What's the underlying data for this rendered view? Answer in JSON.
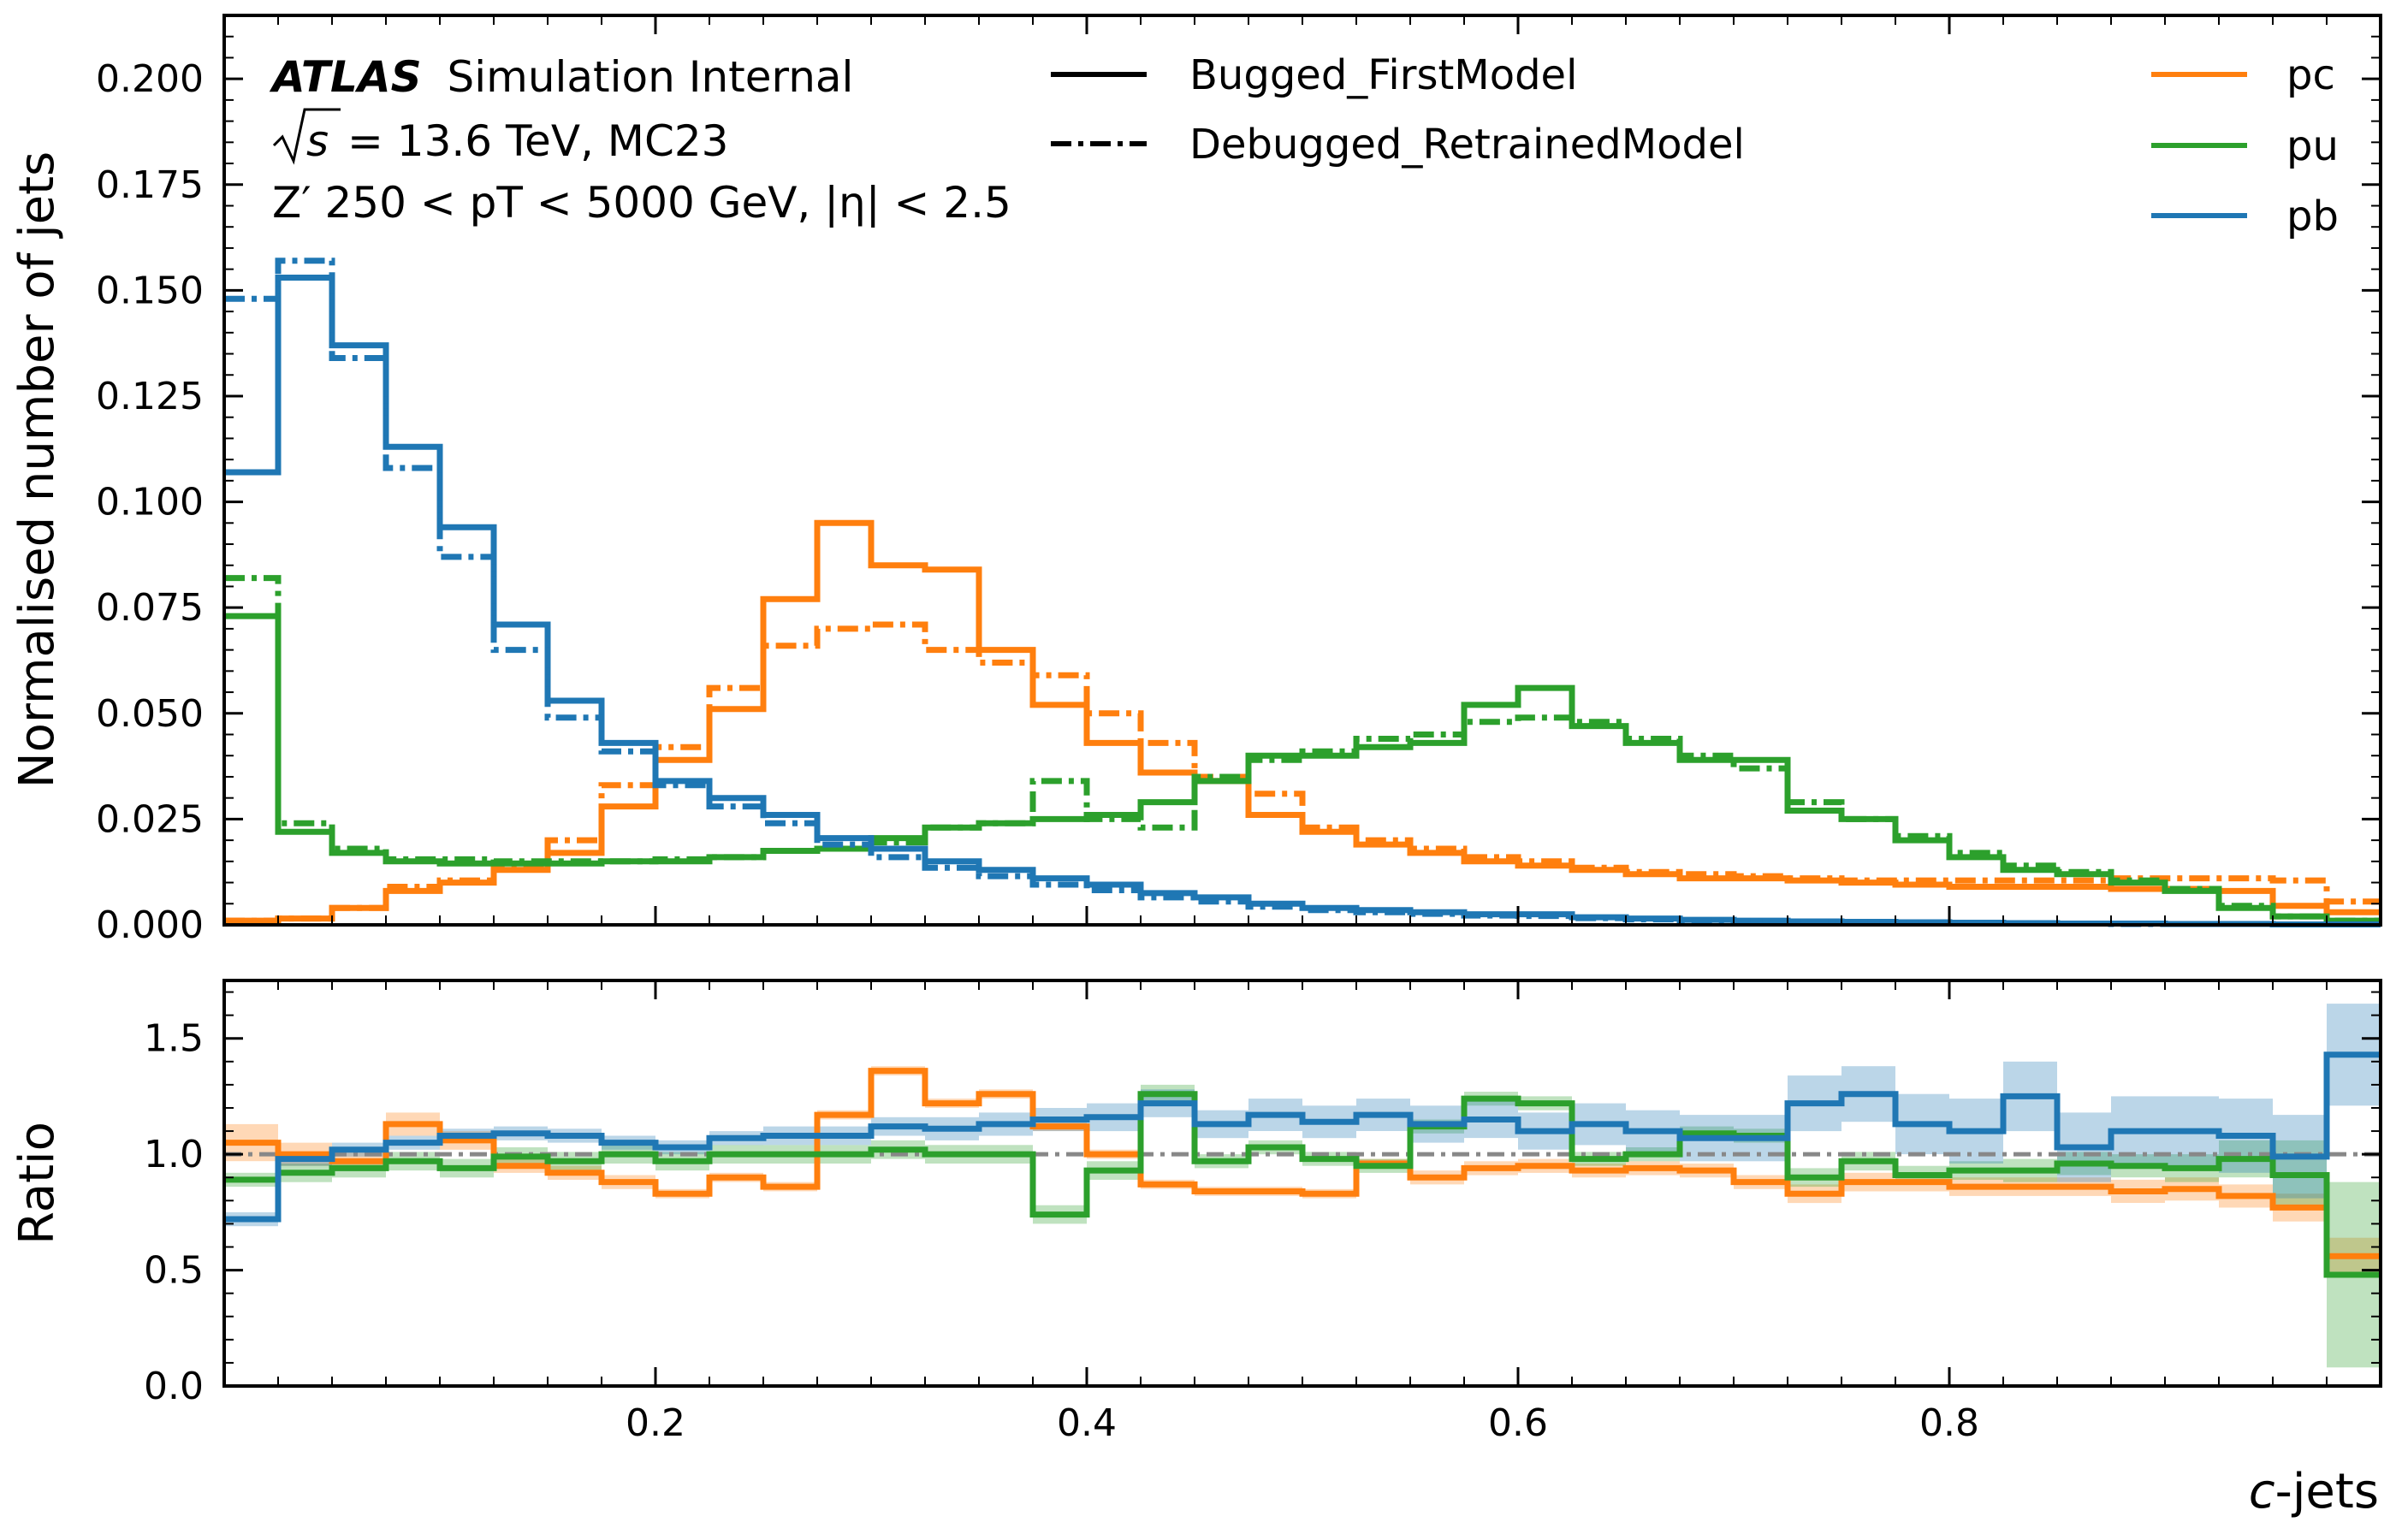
{
  "chart_data": [
    {
      "type": "line",
      "subtype": "step-histogram",
      "ylabel": "Normalised number of jets",
      "xlim": [
        0.0,
        1.0
      ],
      "ylim": [
        0.0,
        0.215
      ],
      "yticks": [
        "0.000",
        "0.025",
        "0.050",
        "0.075",
        "0.100",
        "0.125",
        "0.150",
        "0.175",
        "0.200"
      ],
      "annotations": {
        "atlas": "ATLAS",
        "atlas_status": "Simulation Internal",
        "line2_prefix": "√s",
        "line2_rest": "= 13.6 TeV, MC23",
        "line3": "Z′ 250 < pT < 5000 GeV, |η| < 2.5"
      },
      "legend_styles": [
        {
          "label": "Bugged_FirstModel",
          "linestyle": "solid"
        },
        {
          "label": "Debugged_RetrainedModel",
          "linestyle": "dashdot"
        }
      ],
      "legend_colors": [
        {
          "label": "pc",
          "color": "#ff7f0e"
        },
        {
          "label": "pu",
          "color": "#2ca02c"
        },
        {
          "label": "pb",
          "color": "#1f77b4"
        }
      ],
      "bin_edges": [
        0.0,
        0.025,
        0.05,
        0.075,
        0.1,
        0.125,
        0.15,
        0.175,
        0.2,
        0.225,
        0.25,
        0.275,
        0.3,
        0.325,
        0.35,
        0.375,
        0.4,
        0.425,
        0.45,
        0.475,
        0.5,
        0.525,
        0.55,
        0.575,
        0.6,
        0.625,
        0.65,
        0.675,
        0.7,
        0.725,
        0.75,
        0.775,
        0.8,
        0.825,
        0.85,
        0.875,
        0.9,
        0.925,
        0.95,
        0.975,
        1.0
      ],
      "series": [
        {
          "name": "pc",
          "model": "Bugged_FirstModel",
          "color": "#ff7f0e",
          "linestyle": "solid",
          "values": [
            0.001,
            0.0015,
            0.004,
            0.008,
            0.01,
            0.013,
            0.017,
            0.028,
            0.039,
            0.051,
            0.077,
            0.095,
            0.085,
            0.084,
            0.065,
            0.052,
            0.043,
            0.036,
            0.034,
            0.026,
            0.022,
            0.019,
            0.017,
            0.015,
            0.014,
            0.013,
            0.012,
            0.011,
            0.011,
            0.0105,
            0.01,
            0.0095,
            0.009,
            0.009,
            0.009,
            0.0085,
            0.0085,
            0.008,
            0.0045,
            0.003
          ]
        },
        {
          "name": "pc",
          "model": "Debugged_RetrainedModel",
          "color": "#ff7f0e",
          "linestyle": "dashdot",
          "values": [
            0.001,
            0.0015,
            0.004,
            0.009,
            0.0105,
            0.014,
            0.02,
            0.033,
            0.042,
            0.056,
            0.066,
            0.07,
            0.071,
            0.065,
            0.062,
            0.059,
            0.05,
            0.043,
            0.035,
            0.031,
            0.023,
            0.02,
            0.018,
            0.016,
            0.015,
            0.0135,
            0.0125,
            0.012,
            0.0115,
            0.011,
            0.0105,
            0.0105,
            0.0105,
            0.0105,
            0.0105,
            0.011,
            0.011,
            0.011,
            0.0105,
            0.0055
          ]
        },
        {
          "name": "pu",
          "model": "Bugged_FirstModel",
          "color": "#2ca02c",
          "linestyle": "solid",
          "values": [
            0.073,
            0.022,
            0.017,
            0.015,
            0.0145,
            0.0145,
            0.0145,
            0.015,
            0.015,
            0.016,
            0.0175,
            0.018,
            0.0205,
            0.023,
            0.024,
            0.025,
            0.026,
            0.029,
            0.034,
            0.04,
            0.04,
            0.042,
            0.043,
            0.052,
            0.056,
            0.047,
            0.043,
            0.039,
            0.039,
            0.027,
            0.025,
            0.02,
            0.016,
            0.013,
            0.012,
            0.01,
            0.008,
            0.004,
            0.002,
            0.001
          ]
        },
        {
          "name": "pu",
          "model": "Debugged_RetrainedModel",
          "color": "#2ca02c",
          "linestyle": "dashdot",
          "values": [
            0.082,
            0.024,
            0.018,
            0.0155,
            0.0155,
            0.015,
            0.015,
            0.015,
            0.0155,
            0.016,
            0.0175,
            0.018,
            0.0195,
            0.023,
            0.024,
            0.034,
            0.025,
            0.023,
            0.035,
            0.039,
            0.041,
            0.044,
            0.045,
            0.048,
            0.049,
            0.048,
            0.044,
            0.04,
            0.037,
            0.029,
            0.025,
            0.021,
            0.017,
            0.014,
            0.0125,
            0.0105,
            0.0085,
            0.0045,
            0.002,
            0.001
          ]
        },
        {
          "name": "pb",
          "model": "Bugged_FirstModel",
          "color": "#1f77b4",
          "linestyle": "solid",
          "values": [
            0.107,
            0.153,
            0.137,
            0.113,
            0.094,
            0.071,
            0.053,
            0.043,
            0.034,
            0.03,
            0.026,
            0.0205,
            0.018,
            0.015,
            0.013,
            0.011,
            0.0095,
            0.0075,
            0.0065,
            0.005,
            0.004,
            0.0035,
            0.003,
            0.0025,
            0.0025,
            0.0018,
            0.0015,
            0.0012,
            0.001,
            0.0008,
            0.0007,
            0.0006,
            0.0005,
            0.0004,
            0.0003,
            0.0003,
            0.0002,
            0.0002,
            0.0001,
            0.0001
          ]
        },
        {
          "name": "pb",
          "model": "Debugged_RetrainedModel",
          "color": "#1f77b4",
          "linestyle": "dashdot",
          "values": [
            0.148,
            0.157,
            0.134,
            0.108,
            0.087,
            0.065,
            0.049,
            0.041,
            0.033,
            0.028,
            0.024,
            0.019,
            0.016,
            0.0135,
            0.0115,
            0.0095,
            0.0082,
            0.0065,
            0.0055,
            0.0043,
            0.0035,
            0.003,
            0.0026,
            0.0022,
            0.0021,
            0.0016,
            0.0013,
            0.0011,
            0.0009,
            0.0007,
            0.0006,
            0.0005,
            0.0004,
            0.0003,
            0.0003,
            0.0002,
            0.0002,
            0.0002,
            0.0001,
            0.0001
          ]
        }
      ]
    },
    {
      "type": "line",
      "subtype": "step-ratio",
      "ylabel": "Ratio",
      "xlabel_prefix": "c",
      "xlabel_suffix": "-jets",
      "xlim": [
        0.0,
        1.0
      ],
      "ylim": [
        0.0,
        1.75
      ],
      "yticks": [
        "0.0",
        "0.5",
        "1.0",
        "1.5"
      ],
      "xticks": [
        "0.2",
        "0.4",
        "0.6",
        "0.8"
      ],
      "bin_edges": [
        0.0,
        0.025,
        0.05,
        0.075,
        0.1,
        0.125,
        0.15,
        0.175,
        0.2,
        0.225,
        0.25,
        0.275,
        0.3,
        0.325,
        0.35,
        0.375,
        0.4,
        0.425,
        0.45,
        0.475,
        0.5,
        0.525,
        0.55,
        0.575,
        0.6,
        0.625,
        0.65,
        0.675,
        0.7,
        0.725,
        0.75,
        0.775,
        0.8,
        0.825,
        0.85,
        0.875,
        0.9,
        0.925,
        0.95,
        0.975,
        1.0
      ],
      "reference": 1.0,
      "series": [
        {
          "name": "pc",
          "color": "#ff7f0e",
          "values": [
            1.05,
            1.0,
            0.97,
            1.13,
            1.06,
            0.95,
            0.92,
            0.88,
            0.83,
            0.9,
            0.86,
            1.17,
            1.36,
            1.22,
            1.26,
            1.12,
            1.0,
            0.87,
            0.84,
            0.84,
            0.83,
            0.96,
            0.9,
            0.94,
            0.95,
            0.93,
            0.94,
            0.93,
            0.88,
            0.83,
            0.88,
            0.88,
            0.86,
            0.86,
            0.86,
            0.84,
            0.85,
            0.82,
            0.77,
            0.56
          ],
          "band": [
            0.08,
            0.05,
            0.04,
            0.05,
            0.04,
            0.03,
            0.03,
            0.03,
            0.02,
            0.02,
            0.02,
            0.02,
            0.02,
            0.02,
            0.02,
            0.02,
            0.02,
            0.02,
            0.02,
            0.02,
            0.02,
            0.02,
            0.03,
            0.03,
            0.03,
            0.03,
            0.03,
            0.03,
            0.03,
            0.04,
            0.04,
            0.04,
            0.04,
            0.04,
            0.04,
            0.05,
            0.05,
            0.05,
            0.06,
            0.08
          ]
        },
        {
          "name": "pu",
          "color": "#2ca02c",
          "values": [
            0.89,
            0.92,
            0.94,
            0.97,
            0.94,
            0.99,
            0.97,
            1.0,
            0.97,
            1.0,
            1.0,
            1.0,
            1.02,
            1.0,
            1.0,
            0.74,
            0.93,
            1.26,
            0.97,
            1.03,
            0.98,
            0.95,
            1.12,
            1.24,
            1.22,
            0.98,
            1.0,
            1.09,
            1.08,
            0.9,
            0.97,
            0.91,
            0.93,
            0.93,
            0.96,
            0.95,
            0.94,
            0.98,
            0.91,
            0.48
          ],
          "band": [
            0.03,
            0.04,
            0.04,
            0.04,
            0.04,
            0.04,
            0.04,
            0.04,
            0.04,
            0.04,
            0.04,
            0.04,
            0.04,
            0.04,
            0.04,
            0.04,
            0.04,
            0.04,
            0.03,
            0.03,
            0.03,
            0.03,
            0.03,
            0.03,
            0.03,
            0.03,
            0.03,
            0.03,
            0.03,
            0.04,
            0.04,
            0.04,
            0.04,
            0.05,
            0.05,
            0.05,
            0.06,
            0.08,
            0.15,
            0.4
          ]
        },
        {
          "name": "pb",
          "color": "#1f77b4",
          "values": [
            0.72,
            0.98,
            1.02,
            1.05,
            1.08,
            1.09,
            1.08,
            1.05,
            1.03,
            1.07,
            1.08,
            1.08,
            1.12,
            1.11,
            1.13,
            1.15,
            1.16,
            1.22,
            1.13,
            1.17,
            1.14,
            1.17,
            1.13,
            1.15,
            1.1,
            1.13,
            1.1,
            1.07,
            1.07,
            1.22,
            1.26,
            1.13,
            1.1,
            1.25,
            1.03,
            1.1,
            1.1,
            1.08,
            0.99,
            1.43
          ],
          "band": [
            0.03,
            0.03,
            0.03,
            0.03,
            0.03,
            0.03,
            0.03,
            0.03,
            0.03,
            0.03,
            0.04,
            0.04,
            0.04,
            0.05,
            0.05,
            0.05,
            0.06,
            0.06,
            0.06,
            0.07,
            0.07,
            0.07,
            0.08,
            0.08,
            0.08,
            0.09,
            0.09,
            0.1,
            0.1,
            0.12,
            0.12,
            0.13,
            0.14,
            0.15,
            0.15,
            0.15,
            0.15,
            0.16,
            0.18,
            0.22
          ]
        }
      ]
    }
  ]
}
